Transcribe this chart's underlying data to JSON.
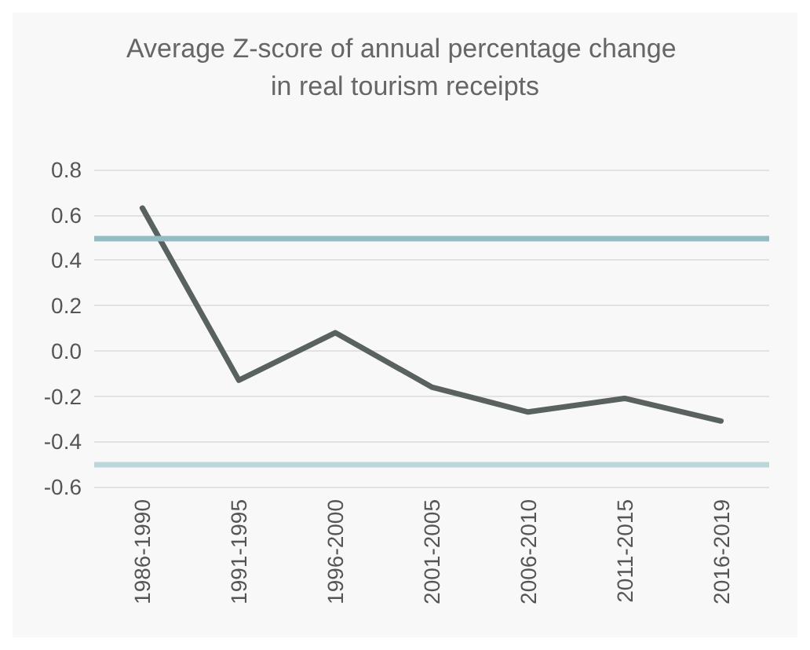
{
  "chart_data": {
    "type": "line",
    "title": "Average Z-score of annual percentage change in real tourism receipts",
    "categories": [
      "1986-1990",
      "1991-1995",
      "1996-2000",
      "2001-2005",
      "2006-2010",
      "2011-2015",
      "2016-2019"
    ],
    "series": [
      {
        "color": "#59625f",
        "values": [
          0.63,
          -0.13,
          0.08,
          -0.16,
          -0.27,
          -0.21,
          -0.31
        ]
      }
    ],
    "ylim": [
      -0.6,
      0.8
    ],
    "yticks": [
      -0.6,
      -0.4,
      -0.2,
      {
        "value": 0,
        "label": "0.0"
      },
      0.2,
      0.4,
      0.6,
      0.8
    ],
    "ref_lines": [
      {
        "axis": "y",
        "value": 0.5,
        "color": "#93bcc3"
      },
      {
        "axis": "y",
        "value": -0.5,
        "color": "#bcd5d9"
      }
    ],
    "grid": "y",
    "marker": "none",
    "line_style": "solid"
  }
}
